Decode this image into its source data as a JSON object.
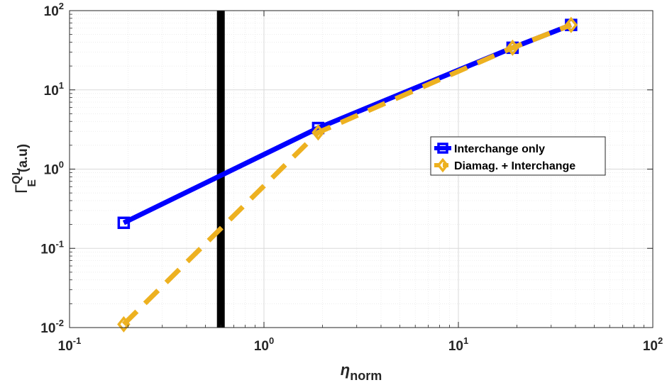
{
  "chart_data": {
    "type": "line",
    "xscale": "log",
    "yscale": "log",
    "xlim": [
      0.1,
      100
    ],
    "ylim": [
      0.01,
      100
    ],
    "grid": true,
    "minor_grid": true,
    "xlabel": {
      "base": "η",
      "sub": "norm"
    },
    "ylabel": {
      "base": "Γ",
      "sup": "QL",
      "sub": "E",
      "suffix": "(a.u)"
    },
    "x_ticks": [
      {
        "value": 0.1,
        "base": "10",
        "exp": "-1"
      },
      {
        "value": 1,
        "base": "10",
        "exp": "0"
      },
      {
        "value": 10,
        "base": "10",
        "exp": "1"
      },
      {
        "value": 100,
        "base": "10",
        "exp": "2"
      }
    ],
    "y_ticks": [
      {
        "value": 0.01,
        "base": "10",
        "exp": "-2"
      },
      {
        "value": 0.1,
        "base": "10",
        "exp": "-1"
      },
      {
        "value": 1,
        "base": "10",
        "exp": "0"
      },
      {
        "value": 10,
        "base": "10",
        "exp": "1"
      },
      {
        "value": 100,
        "base": "10",
        "exp": "2"
      }
    ],
    "vertical_line": {
      "x": 0.6,
      "color": "#000000"
    },
    "legend_position": "middle-right",
    "series": [
      {
        "name": "Interchange only",
        "color": "#0000ff",
        "marker": "square",
        "dash": "solid",
        "x": [
          0.19,
          1.9,
          19,
          38
        ],
        "y": [
          0.21,
          3.3,
          34,
          66
        ]
      },
      {
        "name": "Diamag. + Interchange",
        "color": "#edb120",
        "marker": "diamond",
        "dash": "dashed",
        "x": [
          0.19,
          1.9,
          19,
          38
        ],
        "y": [
          0.011,
          2.9,
          34,
          66
        ]
      }
    ]
  }
}
